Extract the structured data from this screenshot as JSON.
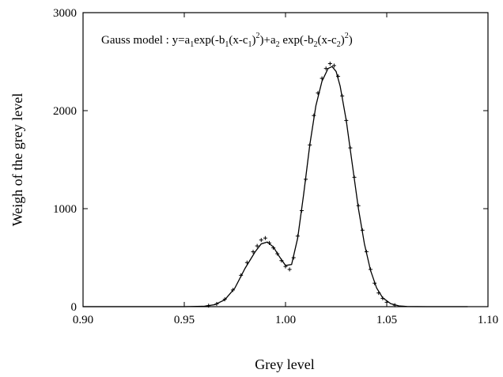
{
  "chart_data": {
    "type": "line",
    "title": "",
    "xlabel": "Grey level",
    "ylabel": "Weigh of the grey level",
    "xlim": [
      0.9,
      1.1
    ],
    "ylim": [
      0,
      3000
    ],
    "x_ticks": [
      "0.90",
      "0.95",
      "1.00",
      "1.05",
      "1.10"
    ],
    "x_tick_values": [
      0.9,
      0.95,
      1.0,
      1.05,
      1.1
    ],
    "y_ticks": [
      "0",
      "1000",
      "2000",
      "3000"
    ],
    "y_tick_values": [
      0,
      1000,
      2000,
      3000
    ],
    "grid": false,
    "annotation": {
      "prefix": "Gauss model : y=a",
      "s1": "1",
      "t1": "exp(-b",
      "s2": "1",
      "t2": "(x-c",
      "s3": "1",
      "t3": ")",
      "p1": "2",
      "t4": ")+a",
      "s4": "2",
      "t5": " exp(-b",
      "s5": "2",
      "t6": "(x-c",
      "s6": "2",
      "t7": ")",
      "p2": "2",
      "t8": ")"
    },
    "series": [
      {
        "style": "solid-line",
        "color": "#000000",
        "x": [
          0.9,
          0.95,
          0.96,
          0.965,
          0.97,
          0.975,
          0.98,
          0.985,
          0.988,
          0.991,
          0.994,
          0.997,
          1.0,
          1.003,
          1.006,
          1.009,
          1.012,
          1.015,
          1.018,
          1.021,
          1.023,
          1.025,
          1.027,
          1.03,
          1.033,
          1.036,
          1.039,
          1.042,
          1.045,
          1.048,
          1.052,
          1.056,
          1.06,
          1.07,
          1.09
        ],
        "y": [
          0,
          0,
          5,
          20,
          70,
          190,
          390,
          560,
          640,
          660,
          610,
          510,
          420,
          430,
          700,
          1150,
          1650,
          2050,
          2300,
          2430,
          2450,
          2400,
          2250,
          1900,
          1450,
          1000,
          640,
          370,
          190,
          90,
          30,
          8,
          2,
          0,
          0
        ]
      },
      {
        "style": "markers",
        "marker": "+",
        "color": "#000000",
        "x": [
          0.962,
          0.966,
          0.97,
          0.974,
          0.978,
          0.981,
          0.984,
          0.986,
          0.988,
          0.99,
          0.992,
          0.994,
          0.996,
          0.998,
          1.0,
          1.002,
          1.004,
          1.006,
          1.008,
          1.01,
          1.012,
          1.014,
          1.016,
          1.018,
          1.02,
          1.022,
          1.024,
          1.026,
          1.028,
          1.03,
          1.032,
          1.034,
          1.036,
          1.038,
          1.04,
          1.042,
          1.044,
          1.046,
          1.048,
          1.05,
          1.054
        ],
        "y": [
          10,
          28,
          75,
          170,
          320,
          450,
          560,
          620,
          680,
          700,
          650,
          600,
          540,
          470,
          410,
          380,
          500,
          720,
          980,
          1300,
          1650,
          1950,
          2180,
          2330,
          2430,
          2480,
          2460,
          2350,
          2150,
          1900,
          1620,
          1320,
          1030,
          780,
          560,
          380,
          240,
          140,
          85,
          45,
          15
        ]
      }
    ]
  }
}
